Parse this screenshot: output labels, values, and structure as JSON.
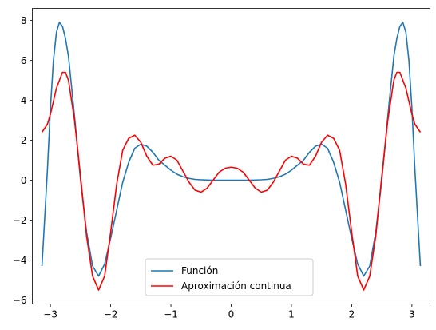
{
  "chart_data": {
    "type": "line",
    "title": "",
    "xlabel": "",
    "ylabel": "",
    "xlim": [
      -3.3,
      3.3
    ],
    "ylim": [
      -6.2,
      8.6
    ],
    "xticks": [
      -3,
      -2,
      -1,
      0,
      1,
      2,
      3
    ],
    "xtick_labels": [
      "−3",
      "−2",
      "−1",
      "0",
      "1",
      "2",
      "3"
    ],
    "yticks": [
      -6,
      -4,
      -2,
      0,
      2,
      4,
      6,
      8
    ],
    "ytick_labels": [
      "−6",
      "−4",
      "−2",
      "0",
      "2",
      "4",
      "6",
      "8"
    ],
    "grid": false,
    "legend_position": "bottom-center",
    "series": [
      {
        "name": "Función",
        "color": "#1f77b4",
        "x": [
          -3.14,
          -3.05,
          -3.0,
          -2.95,
          -2.9,
          -2.85,
          -2.8,
          -2.75,
          -2.7,
          -2.6,
          -2.5,
          -2.4,
          -2.3,
          -2.2,
          -2.1,
          -2.0,
          -1.9,
          -1.8,
          -1.7,
          -1.6,
          -1.5,
          -1.4,
          -1.3,
          -1.2,
          -1.1,
          -1.0,
          -0.9,
          -0.8,
          -0.7,
          -0.6,
          -0.5,
          -0.4,
          -0.3,
          -0.2,
          -0.1,
          0.0,
          0.1,
          0.2,
          0.3,
          0.4,
          0.5,
          0.6,
          0.7,
          0.8,
          0.9,
          1.0,
          1.1,
          1.2,
          1.3,
          1.4,
          1.5,
          1.6,
          1.7,
          1.8,
          1.9,
          2.0,
          2.1,
          2.2,
          2.3,
          2.4,
          2.5,
          2.6,
          2.7,
          2.75,
          2.8,
          2.85,
          2.9,
          2.95,
          3.0,
          3.05,
          3.14
        ],
        "y": [
          -4.3,
          0.5,
          3.6,
          6.0,
          7.4,
          7.9,
          7.7,
          7.1,
          6.2,
          3.2,
          0.0,
          -2.6,
          -4.3,
          -4.8,
          -4.2,
          -2.9,
          -1.5,
          -0.1,
          0.9,
          1.6,
          1.8,
          1.7,
          1.4,
          1.0,
          0.75,
          0.5,
          0.3,
          0.17,
          0.09,
          0.04,
          0.02,
          0.01,
          0.0,
          0.0,
          0.0,
          0.0,
          0.0,
          0.0,
          0.0,
          0.01,
          0.02,
          0.04,
          0.09,
          0.17,
          0.3,
          0.5,
          0.75,
          1.0,
          1.4,
          1.7,
          1.8,
          1.6,
          0.9,
          -0.1,
          -1.5,
          -2.9,
          -4.2,
          -4.8,
          -4.3,
          -2.6,
          0.0,
          3.2,
          6.2,
          7.1,
          7.7,
          7.9,
          7.4,
          6.0,
          3.6,
          0.5,
          -4.3
        ]
      },
      {
        "name": "Aproximación continua",
        "color": "#ff0000",
        "x": [
          -3.14,
          -3.05,
          -3.0,
          -2.9,
          -2.8,
          -2.75,
          -2.7,
          -2.6,
          -2.5,
          -2.4,
          -2.3,
          -2.2,
          -2.1,
          -2.0,
          -1.9,
          -1.8,
          -1.7,
          -1.6,
          -1.5,
          -1.4,
          -1.3,
          -1.2,
          -1.1,
          -1.0,
          -0.9,
          -0.8,
          -0.7,
          -0.6,
          -0.5,
          -0.4,
          -0.3,
          -0.2,
          -0.1,
          0.0,
          0.1,
          0.2,
          0.3,
          0.4,
          0.5,
          0.6,
          0.7,
          0.8,
          0.9,
          1.0,
          1.1,
          1.2,
          1.3,
          1.4,
          1.5,
          1.6,
          1.7,
          1.8,
          1.9,
          2.0,
          2.1,
          2.2,
          2.3,
          2.4,
          2.5,
          2.6,
          2.7,
          2.75,
          2.8,
          2.9,
          3.0,
          3.05,
          3.14
        ],
        "y": [
          2.4,
          2.8,
          3.3,
          4.6,
          5.4,
          5.4,
          5.0,
          3.0,
          0.2,
          -2.8,
          -4.8,
          -5.5,
          -4.8,
          -2.6,
          -0.2,
          1.5,
          2.1,
          2.25,
          1.9,
          1.2,
          0.75,
          0.8,
          1.1,
          1.2,
          1.0,
          0.45,
          -0.1,
          -0.5,
          -0.6,
          -0.4,
          0.0,
          0.4,
          0.6,
          0.65,
          0.6,
          0.4,
          0.0,
          -0.4,
          -0.6,
          -0.5,
          -0.1,
          0.45,
          1.0,
          1.2,
          1.1,
          0.8,
          0.75,
          1.2,
          1.9,
          2.25,
          2.1,
          1.5,
          -0.2,
          -2.6,
          -4.8,
          -5.5,
          -4.8,
          -2.8,
          0.2,
          3.0,
          5.0,
          5.4,
          5.4,
          4.6,
          3.3,
          2.8,
          2.4
        ]
      }
    ]
  }
}
